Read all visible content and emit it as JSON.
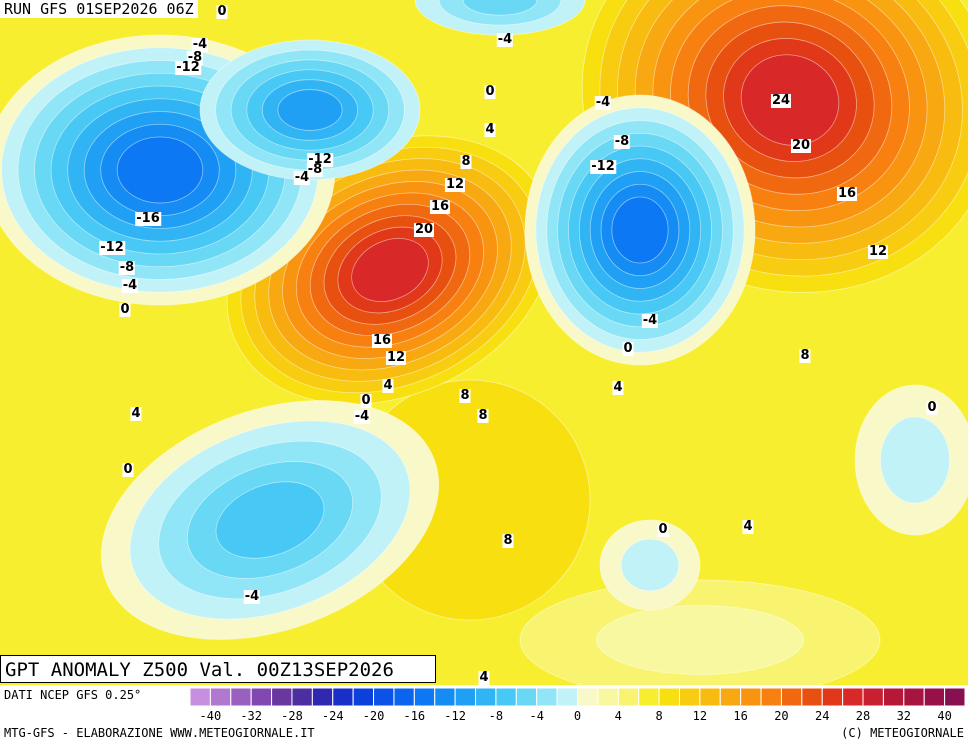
{
  "header": {
    "run": "RUN GFS 01SEP2026 06Z"
  },
  "map": {
    "title": "GPT ANOMALY Z500 Val. 00Z13SEP2026",
    "contour_labels": [
      "0",
      "-4",
      "-8",
      "-12",
      "-4",
      "0",
      "4",
      "8",
      "12",
      "16",
      "20",
      "-4",
      "-8",
      "-12",
      "24",
      "20",
      "16",
      "12",
      "-12",
      "-8",
      "-4",
      "-16",
      "-12",
      "-8",
      "-4",
      "0",
      "-4",
      "0",
      "8",
      "16",
      "12",
      "4",
      "0",
      "-4",
      "8",
      "8",
      "4",
      "4",
      "0",
      "0",
      "0",
      "4",
      "8",
      "-4",
      "4"
    ]
  },
  "colorbar": {
    "source": "DATI NCEP GFS 0.25°",
    "labels": [
      "-40",
      "-32",
      "-28",
      "-24",
      "-20",
      "-16",
      "-12",
      "-8",
      "-4",
      "0",
      "4",
      "8",
      "12",
      "16",
      "20",
      "24",
      "28",
      "32",
      "40"
    ],
    "colors": [
      "#c88ee0",
      "#b078d0",
      "#9a60c0",
      "#8048b0",
      "#6a36a0",
      "#4c2ea0",
      "#3028b0",
      "#1830c8",
      "#0c40dc",
      "#0a52e8",
      "#0a64f0",
      "#0c78f4",
      "#148cf4",
      "#20a0f4",
      "#30b4f4",
      "#48c8f4",
      "#68d8f4",
      "#90e6f6",
      "#c0f2f8",
      "#f8f8c8",
      "#f8f8a0",
      "#f8f470",
      "#f8ee30",
      "#f8e010",
      "#f8cc10",
      "#f8bc10",
      "#f8a810",
      "#f89410",
      "#f88010",
      "#f06810",
      "#e85010",
      "#e03818",
      "#d82828",
      "#c82030",
      "#b81838",
      "#a81440",
      "#981048",
      "#881050"
    ]
  },
  "footer": {
    "left": "MTG-GFS - ELABORAZIONE WWW.METEOGIORNALE.IT",
    "right": "(C) METEOGIORNALE"
  }
}
